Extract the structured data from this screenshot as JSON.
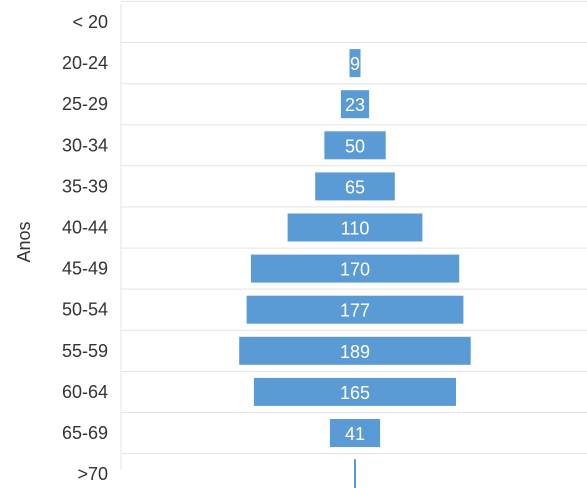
{
  "chart_data": {
    "type": "bar",
    "orientation": "horizontal",
    "style": "population-pyramid-centered",
    "ylabel": "Anos",
    "categories": [
      "< 20",
      "20-24",
      "25-29",
      "30-34",
      "35-39",
      "40-44",
      "45-49",
      "50-54",
      "55-59",
      "60-64",
      "65-69",
      ">70"
    ],
    "values": [
      0,
      9,
      23,
      50,
      65,
      110,
      170,
      177,
      189,
      165,
      41,
      1
    ],
    "data_labels": [
      "",
      "9",
      "23",
      "50",
      "65",
      "110",
      "170",
      "177",
      "189",
      "165",
      "41",
      ""
    ],
    "bar_color": "#5b9bd5",
    "label_color": "#ffffff",
    "grid": true,
    "legend": "none"
  }
}
